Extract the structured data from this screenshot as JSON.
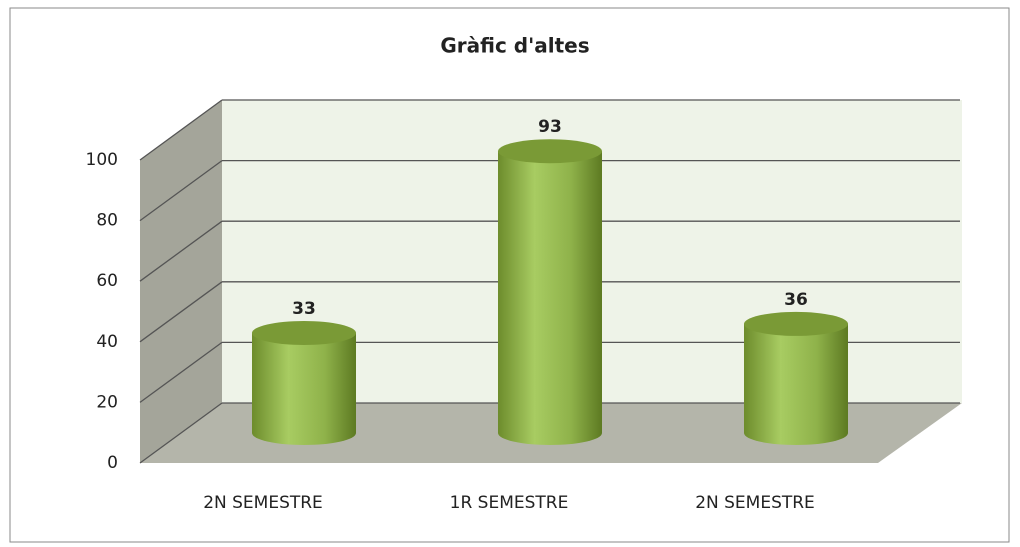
{
  "chart_data": {
    "type": "bar",
    "title": "Gràfic d'altes",
    "categories": [
      "2N SEMESTRE",
      "1R SEMESTRE",
      "2N SEMESTRE"
    ],
    "values": [
      33,
      93,
      36
    ],
    "color": "#8db04a",
    "ylim": [
      0,
      100
    ],
    "yticks": [
      0,
      20,
      40,
      60,
      80,
      100
    ],
    "grid": true
  }
}
